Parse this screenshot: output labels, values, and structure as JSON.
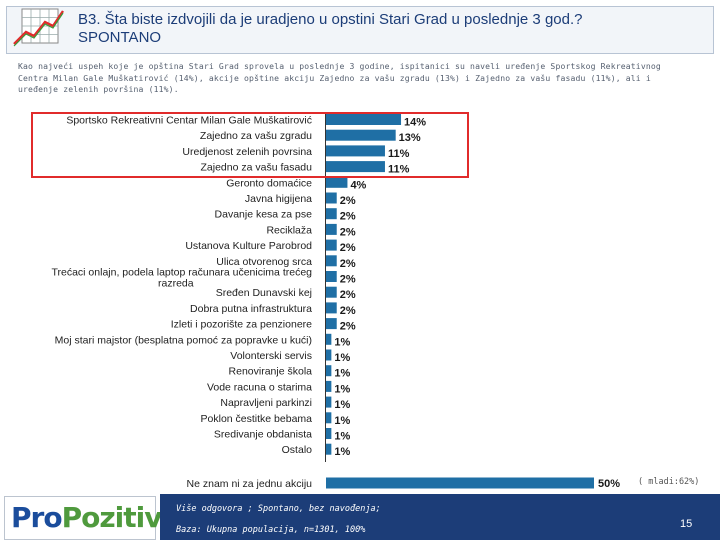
{
  "header": {
    "title_line1": "B3. Šta biste izdvojili da je uradjeno u opstini Stari Grad u poslednje 3 god.?",
    "title_line2": "SPONTANO"
  },
  "summary": "Kao najveći uspeh koje je opština Stari Grad sprovela u poslednje 3 godine, ispitanici su naveli uređenje Sportskog Rekreativnog\nCentra Milan Gale Muškatirović (14%), akcije opštine akciju Zajedno za vašu zgradu   (13%) i Zajedno za vašu fasadu (11%), ali i\nuređenje zelenih površina (11%).",
  "chart_data": {
    "type": "bar",
    "orientation": "horizontal",
    "categories": [
      "Sportsko Rekreativni Centar Milan Gale Muškatirović",
      "Zajedno za vašu zgradu",
      "Uredjenost zelenih povrsina",
      "Zajedno za vašu fasadu",
      "Geronto domaćice",
      "Javna higijena",
      "Davanje kesa za pse",
      "Reciklaža",
      "Ustanova Kulture Parobrod",
      "Ulica otvorenog srca",
      "Trećaci onlajn, podela laptop računara učenicima trećeg razreda",
      "Sređen Dunavski kej",
      "Dobra putna infrastruktura",
      "Izleti i pozorište za penzionere",
      "Moj stari majstor (besplatna pomoć za popravke u kući)",
      "Volonterski servis",
      "Renoviranje škola",
      "Vode racuna o starima",
      "Napravljeni parkinzi",
      "Poklon čestitke bebama",
      "Sredivanje obdanista",
      "Ostalo",
      "Ne znam ni za jednu akciju"
    ],
    "values": [
      14,
      13,
      11,
      11,
      4,
      2,
      2,
      2,
      2,
      2,
      2,
      2,
      2,
      2,
      1,
      1,
      1,
      1,
      1,
      1,
      1,
      1,
      50
    ],
    "value_labels": [
      "14%",
      "13%",
      "11%",
      "11%",
      "4%",
      "2%",
      "2%",
      "2%",
      "2%",
      "2%",
      "2%",
      "2%",
      "2%",
      "2%",
      "1%",
      "1%",
      "1%",
      "1%",
      "1%",
      "1%",
      "1%",
      "1%",
      "50%"
    ],
    "bar_color": "#1f6fa5",
    "highlight_color": "#e12b2b",
    "highlighted_count": 4,
    "xlim": [
      0,
      50
    ],
    "annotation": "( mladi:62%)"
  },
  "footer": {
    "brand_pro": "Pro",
    "brand_pozitiv": "Pozitiv",
    "note_line1": "Više odgovora ; Spontano, bez navođenja;",
    "note_line2": "Baza: Ukupna populacija, n=1301, 100%",
    "page_number": "15"
  }
}
